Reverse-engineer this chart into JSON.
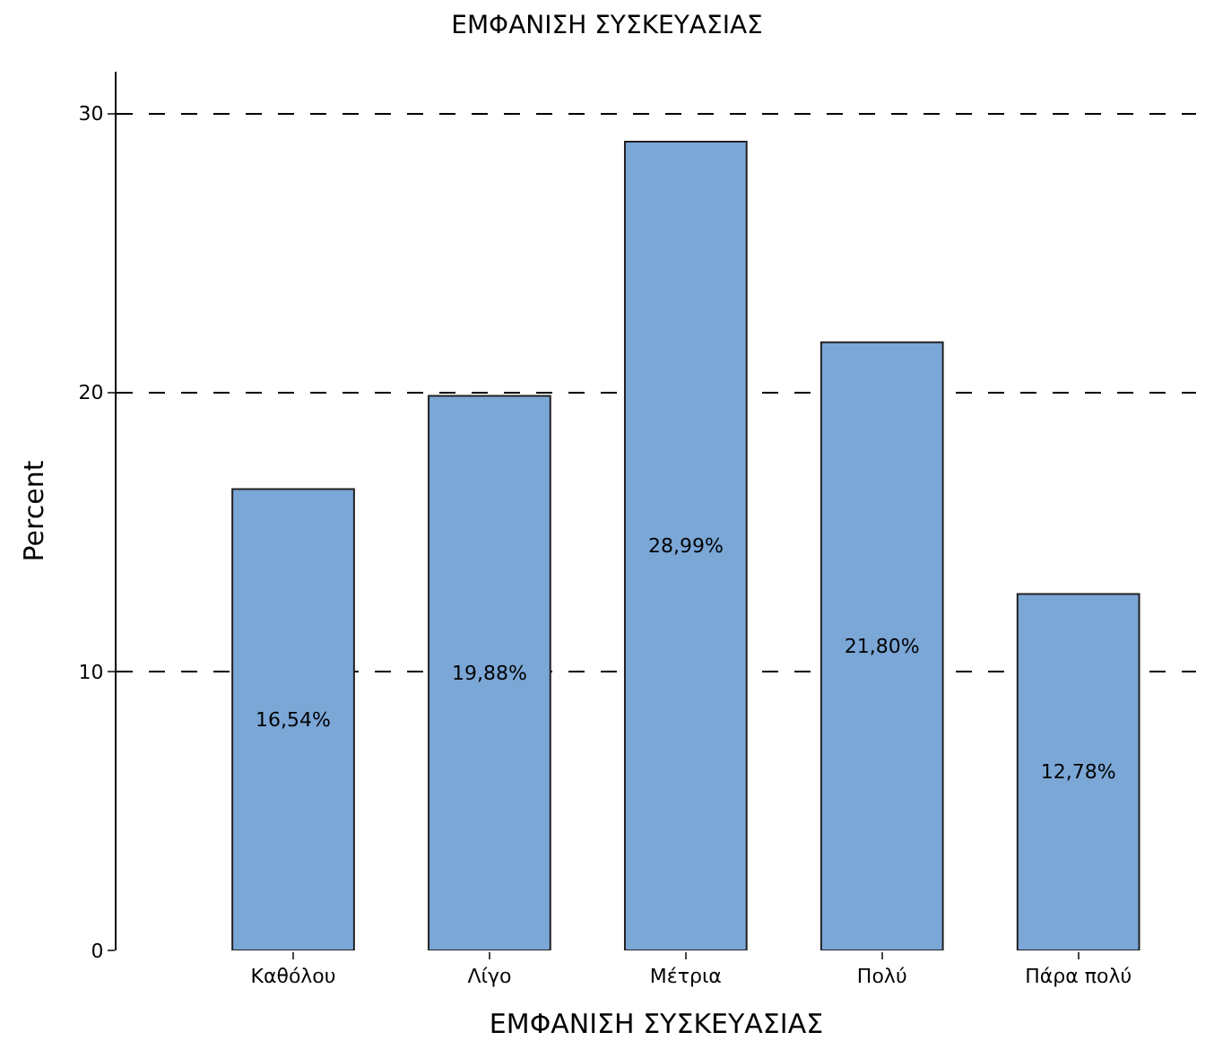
{
  "chart_data": {
    "type": "bar",
    "title": "ΕΜΦΑΝΙΣΗ ΣΥΣΚΕΥΑΣΙΑΣ",
    "xlabel": "ΕΜΦΑΝΙΣΗ ΣΥΣΚΕΥΑΣΙΑΣ",
    "ylabel": "Percent",
    "categories": [
      "Καθόλου",
      "Λίγο",
      "Μέτρια",
      "Πολύ",
      "Πάρα πολύ"
    ],
    "values": [
      16.54,
      19.88,
      28.99,
      21.8,
      12.78
    ],
    "value_labels": [
      "16,54%",
      "19,88%",
      "28,99%",
      "21,80%",
      "12,78%"
    ],
    "color": "#7ba7d7",
    "ylim": [
      0,
      31.5
    ],
    "yticks": [
      0,
      10,
      20,
      30
    ],
    "grid": "y"
  }
}
